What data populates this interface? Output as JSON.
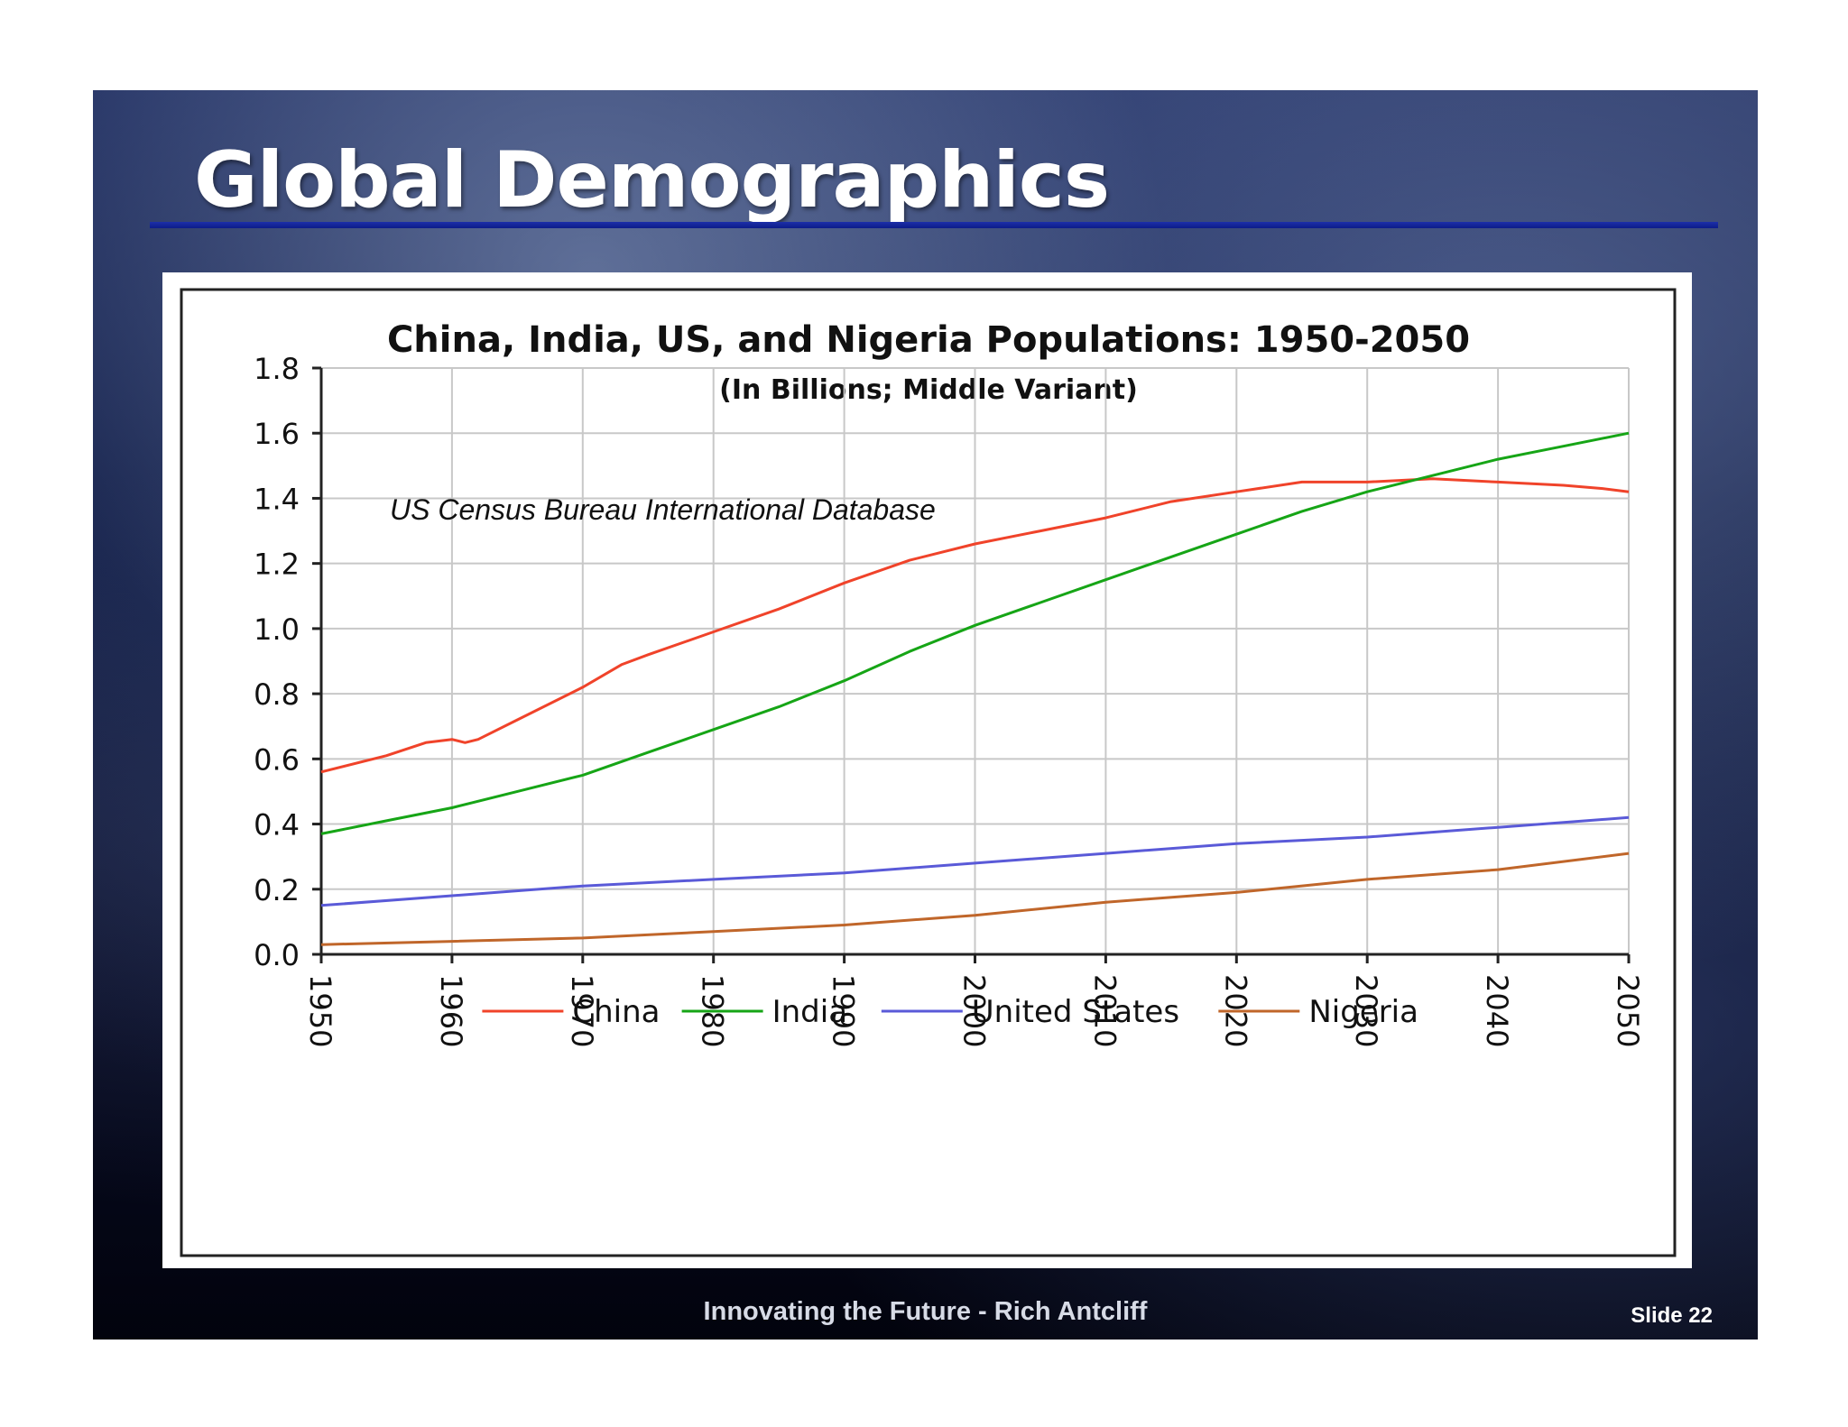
{
  "slide": {
    "title": "Global Demographics",
    "footer": "Innovating the Future - Rich Antcliff",
    "slide_number": "Slide 22"
  },
  "chart_data": {
    "type": "line",
    "title": "China, India, US, and Nigeria Populations:  1950-2050",
    "subtitle": "(In Billions; Middle Variant)",
    "annotation": "US Census Bureau International Database",
    "xlabel": "",
    "ylabel": "",
    "xlim": [
      1950,
      2050
    ],
    "ylim": [
      0,
      1.8
    ],
    "x_ticks": [
      1950,
      1960,
      1970,
      1980,
      1990,
      2000,
      2010,
      2020,
      2030,
      2040,
      2050
    ],
    "y_ticks": [
      "0.0",
      "0.2",
      "0.4",
      "0.6",
      "0.8",
      "1.0",
      "1.2",
      "1.4",
      "1.6",
      "1.8"
    ],
    "grid": true,
    "legend_position": "bottom",
    "series": [
      {
        "name": "China",
        "color": "#f0432a",
        "x": [
          1950,
          1955,
          1958,
          1960,
          1961,
          1962,
          1965,
          1970,
          1973,
          1975,
          1980,
          1985,
          1990,
          1995,
          2000,
          2005,
          2010,
          2015,
          2020,
          2025,
          2030,
          2035,
          2040,
          2045,
          2048,
          2050
        ],
        "values": [
          0.56,
          0.61,
          0.65,
          0.66,
          0.65,
          0.66,
          0.72,
          0.82,
          0.89,
          0.92,
          0.99,
          1.06,
          1.14,
          1.21,
          1.26,
          1.3,
          1.34,
          1.39,
          1.42,
          1.45,
          1.45,
          1.46,
          1.45,
          1.44,
          1.43,
          1.42
        ]
      },
      {
        "name": "India",
        "color": "#16a516",
        "x": [
          1950,
          1955,
          1960,
          1965,
          1970,
          1975,
          1980,
          1985,
          1990,
          1995,
          2000,
          2005,
          2010,
          2015,
          2020,
          2025,
          2030,
          2035,
          2040,
          2045,
          2050
        ],
        "values": [
          0.37,
          0.41,
          0.45,
          0.5,
          0.55,
          0.62,
          0.69,
          0.76,
          0.84,
          0.93,
          1.01,
          1.08,
          1.15,
          1.22,
          1.29,
          1.36,
          1.42,
          1.47,
          1.52,
          1.56,
          1.6
        ]
      },
      {
        "name": "United States",
        "color": "#5a5ad8",
        "x": [
          1950,
          1960,
          1970,
          1980,
          1990,
          2000,
          2010,
          2020,
          2030,
          2040,
          2050
        ],
        "values": [
          0.15,
          0.18,
          0.21,
          0.23,
          0.25,
          0.28,
          0.31,
          0.34,
          0.36,
          0.39,
          0.42
        ]
      },
      {
        "name": "Nigeria",
        "color": "#c0662a",
        "x": [
          1950,
          1960,
          1970,
          1980,
          1990,
          2000,
          2010,
          2020,
          2030,
          2040,
          2050
        ],
        "values": [
          0.03,
          0.04,
          0.05,
          0.07,
          0.09,
          0.12,
          0.16,
          0.19,
          0.23,
          0.26,
          0.31
        ]
      }
    ]
  }
}
